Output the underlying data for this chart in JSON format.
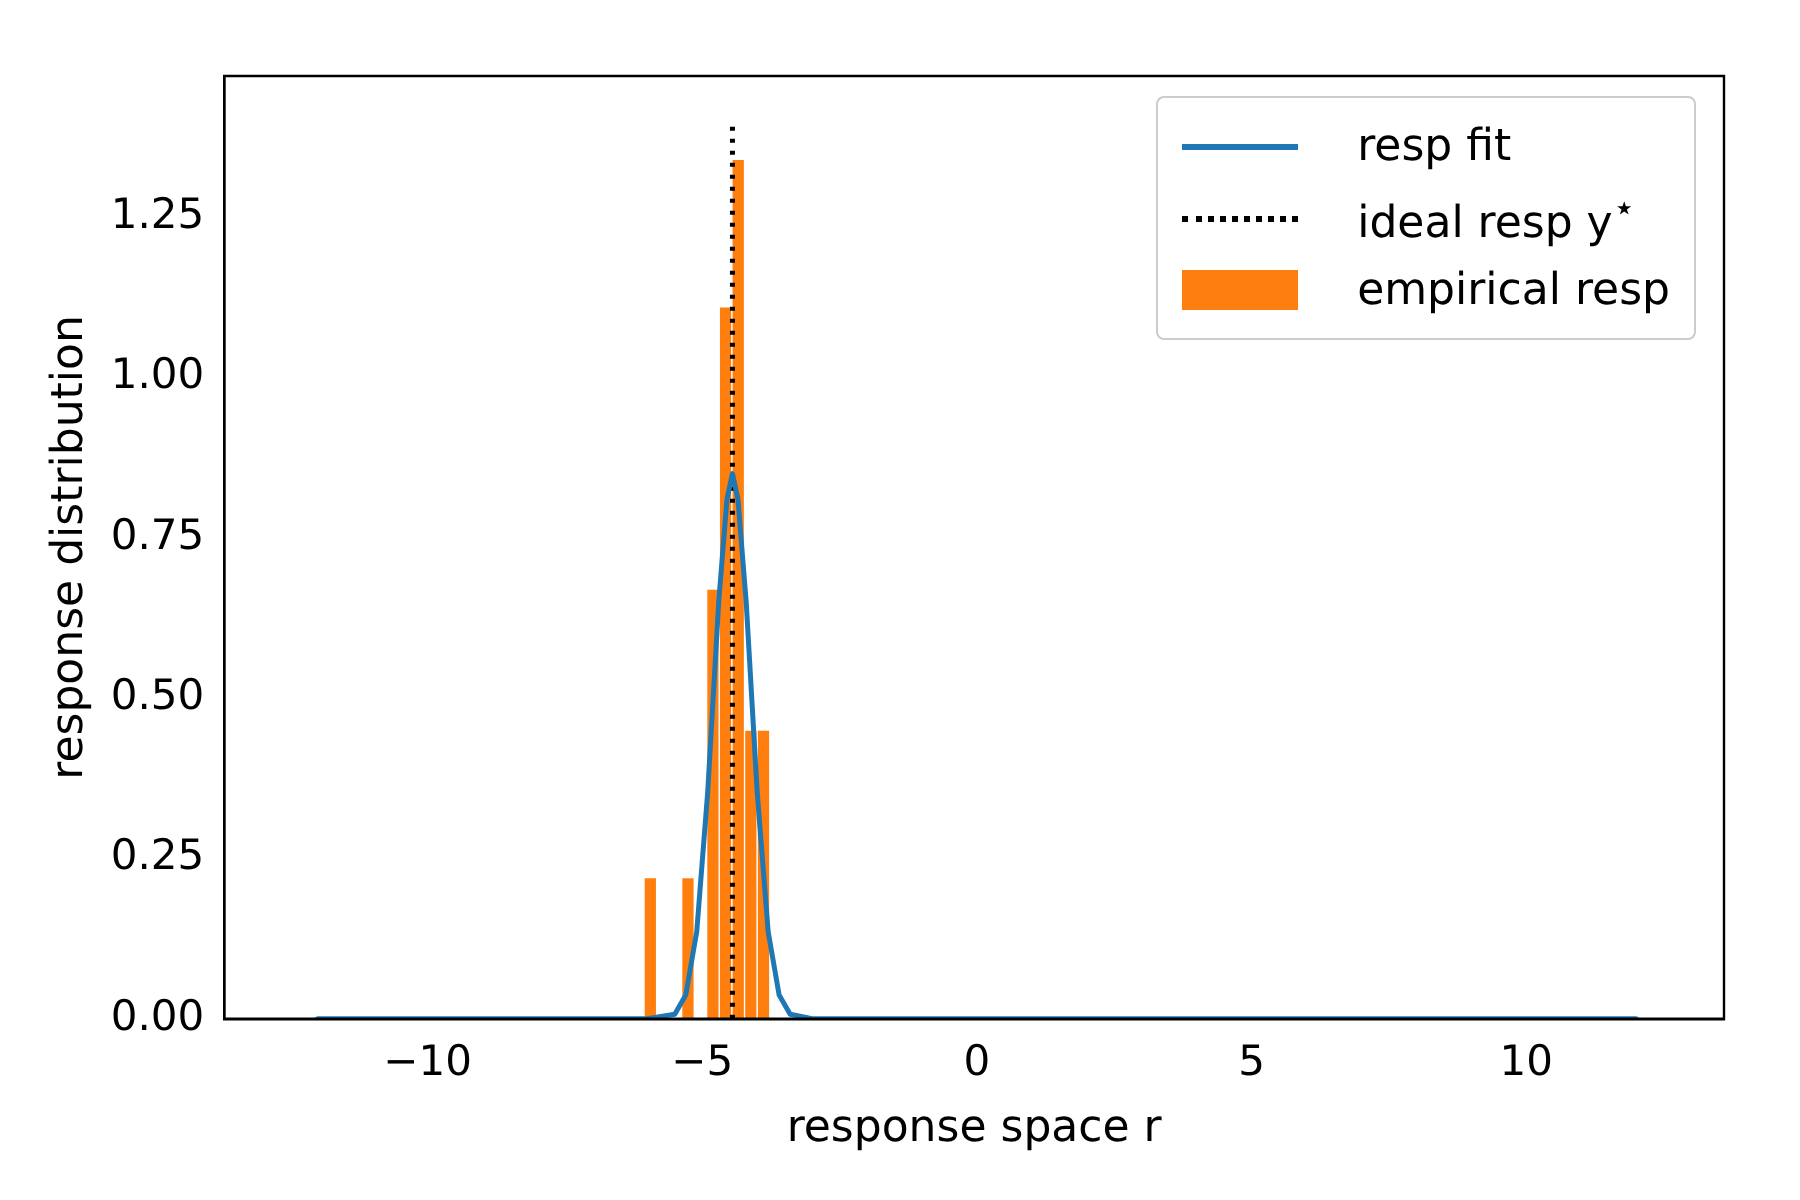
{
  "chart_data": {
    "type": "histogram",
    "xlabel": "response space r",
    "ylabel": "response distribution",
    "bins": [
      -6.06,
      -5.83,
      -5.6,
      -5.37,
      -5.15,
      -4.92,
      -4.69,
      -4.46,
      -4.23,
      -4.0,
      -3.77
    ],
    "series": [
      {
        "name": "resp fit",
        "type": "line",
        "color": "#1f77b4",
        "line_style": "solid",
        "x": [
          -12,
          -6,
          -5.5,
          -5.3,
          -5.1,
          -4.9,
          -4.7,
          -4.55,
          -4.45,
          -4.35,
          -4.2,
          -4.0,
          -3.8,
          -3.6,
          -3.4,
          -3.0,
          12
        ],
        "values": [
          0,
          0,
          0.007,
          0.037,
          0.136,
          0.354,
          0.65,
          0.81,
          0.85,
          0.81,
          0.65,
          0.354,
          0.136,
          0.037,
          0.007,
          0,
          0
        ]
      },
      {
        "name": "ideal resp y$^{⋆}$",
        "type": "line",
        "color": "#000000",
        "line_style": "dotted",
        "x": [
          -4.45,
          -4.45
        ],
        "values": [
          0,
          1.4
        ]
      },
      {
        "name": "empirical resp",
        "color": "#ff7f0e",
        "values": [
          0.22,
          0,
          0,
          0.22,
          0,
          0.67,
          1.11,
          1.34,
          0.45,
          0.45
        ]
      }
    ],
    "xlim": [
      -13.7,
      13.6
    ],
    "ylim": [
      0,
      1.47
    ],
    "xticks": [
      {
        "value": -10,
        "label": "−10"
      },
      {
        "value": -5,
        "label": "−5"
      },
      0,
      5,
      10
    ],
    "yticks": [
      {
        "value": 0,
        "label": "0.00"
      },
      {
        "value": 0.25,
        "label": "0.25"
      },
      {
        "value": 0.5,
        "label": "0.50"
      },
      {
        "value": 0.75,
        "label": "0.75"
      },
      {
        "value": 1,
        "label": "1.00"
      },
      {
        "value": 1.25,
        "label": "1.25"
      }
    ],
    "legend": "top right"
  }
}
